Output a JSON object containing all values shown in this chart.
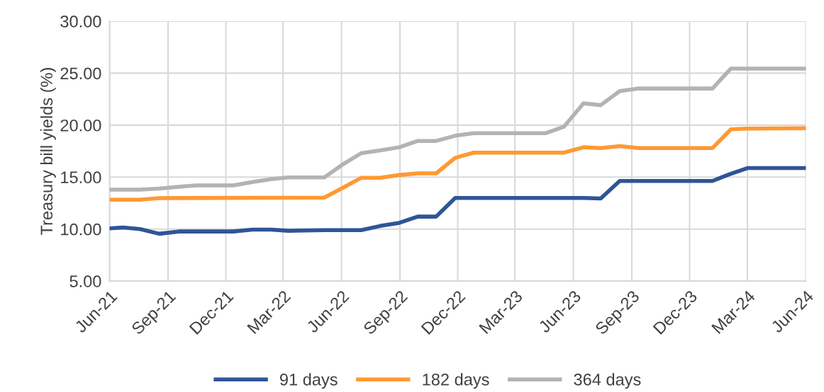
{
  "chart_data": {
    "type": "line",
    "ylabel": "Treasury bill yields (%)",
    "xlim": [
      "2021-06-01",
      "2024-06-01"
    ],
    "ylim": [
      5,
      30
    ],
    "xticks": [
      {
        "value": "2021-06-01",
        "label": "Jun-21"
      },
      {
        "value": "2021-09-01",
        "label": "Sep-21"
      },
      {
        "value": "2021-12-01",
        "label": "Dec-21"
      },
      {
        "value": "2022-03-01",
        "label": "Mar-22"
      },
      {
        "value": "2022-06-01",
        "label": "Jun-22"
      },
      {
        "value": "2022-09-01",
        "label": "Sep-22"
      },
      {
        "value": "2022-12-01",
        "label": "Dec-22"
      },
      {
        "value": "2023-03-01",
        "label": "Mar-23"
      },
      {
        "value": "2023-06-01",
        "label": "Jun-23"
      },
      {
        "value": "2023-09-01",
        "label": "Sep-23"
      },
      {
        "value": "2023-12-01",
        "label": "Dec-23"
      },
      {
        "value": "2024-03-01",
        "label": "Mar-24"
      },
      {
        "value": "2024-06-01",
        "label": "Jun-24"
      }
    ],
    "yticks": [
      {
        "value": 5,
        "label": "5.00"
      },
      {
        "value": 10,
        "label": "10.00"
      },
      {
        "value": 15,
        "label": "15.00"
      },
      {
        "value": 20,
        "label": "20.00"
      },
      {
        "value": 25,
        "label": "25.00"
      },
      {
        "value": 30,
        "label": "30.00"
      }
    ],
    "grid": true,
    "legend": "bottom",
    "marker": "none",
    "line_style": "solid",
    "series": [
      {
        "name": "91 days",
        "color": "#2f5597",
        "x": [
          "2021-06-01",
          "2021-06-22",
          "2021-07-19",
          "2021-08-18",
          "2021-09-18",
          "2021-12-13",
          "2022-01-12",
          "2022-02-10",
          "2022-03-09",
          "2022-05-05",
          "2022-07-02",
          "2022-08-01",
          "2022-08-31",
          "2022-09-29",
          "2022-10-28",
          "2022-11-27",
          "2023-06-17",
          "2023-07-14",
          "2023-08-13",
          "2024-01-06",
          "2024-02-03",
          "2024-03-01",
          "2024-06-01"
        ],
        "values": [
          10.07,
          10.15,
          10.0,
          9.55,
          9.77,
          9.77,
          9.95,
          9.95,
          9.84,
          9.9,
          9.9,
          10.3,
          10.6,
          11.2,
          11.2,
          13.0,
          13.0,
          12.94,
          14.63,
          14.63,
          15.3,
          15.87,
          15.87
        ]
      },
      {
        "name": "182 days",
        "color": "#ff9933",
        "x": [
          "2021-06-01",
          "2021-07-19",
          "2021-08-18",
          "2022-05-05",
          "2022-06-04",
          "2022-07-02",
          "2022-08-01",
          "2022-08-31",
          "2022-09-29",
          "2022-10-28",
          "2022-11-27",
          "2022-12-26",
          "2023-05-17",
          "2023-06-17",
          "2023-07-14",
          "2023-08-13",
          "2023-09-12",
          "2024-01-06",
          "2024-02-04",
          "2024-03-01",
          "2024-06-01"
        ],
        "values": [
          12.82,
          12.82,
          12.98,
          13.03,
          14.0,
          14.93,
          14.93,
          15.2,
          15.36,
          15.36,
          16.85,
          17.35,
          17.35,
          17.87,
          17.8,
          17.98,
          17.8,
          17.8,
          19.6,
          19.67,
          19.7
        ]
      },
      {
        "name": "364 days",
        "color": "#b3b3b3",
        "x": [
          "2021-06-01",
          "2021-07-19",
          "2021-08-18",
          "2021-09-18",
          "2021-10-16",
          "2021-12-13",
          "2022-01-12",
          "2022-02-10",
          "2022-03-09",
          "2022-05-05",
          "2022-06-04",
          "2022-07-02",
          "2022-08-01",
          "2022-08-31",
          "2022-09-29",
          "2022-10-28",
          "2022-11-27",
          "2022-12-26",
          "2023-04-18",
          "2023-05-17",
          "2023-06-17",
          "2023-07-14",
          "2023-08-13",
          "2023-09-12",
          "2024-01-06",
          "2024-02-04",
          "2024-06-01"
        ],
        "values": [
          13.8,
          13.8,
          13.9,
          14.07,
          14.2,
          14.2,
          14.52,
          14.8,
          14.97,
          14.97,
          16.26,
          17.3,
          17.57,
          17.87,
          18.48,
          18.48,
          18.98,
          19.22,
          19.22,
          19.84,
          22.1,
          21.92,
          23.27,
          23.52,
          23.52,
          25.44,
          25.44
        ]
      }
    ]
  }
}
